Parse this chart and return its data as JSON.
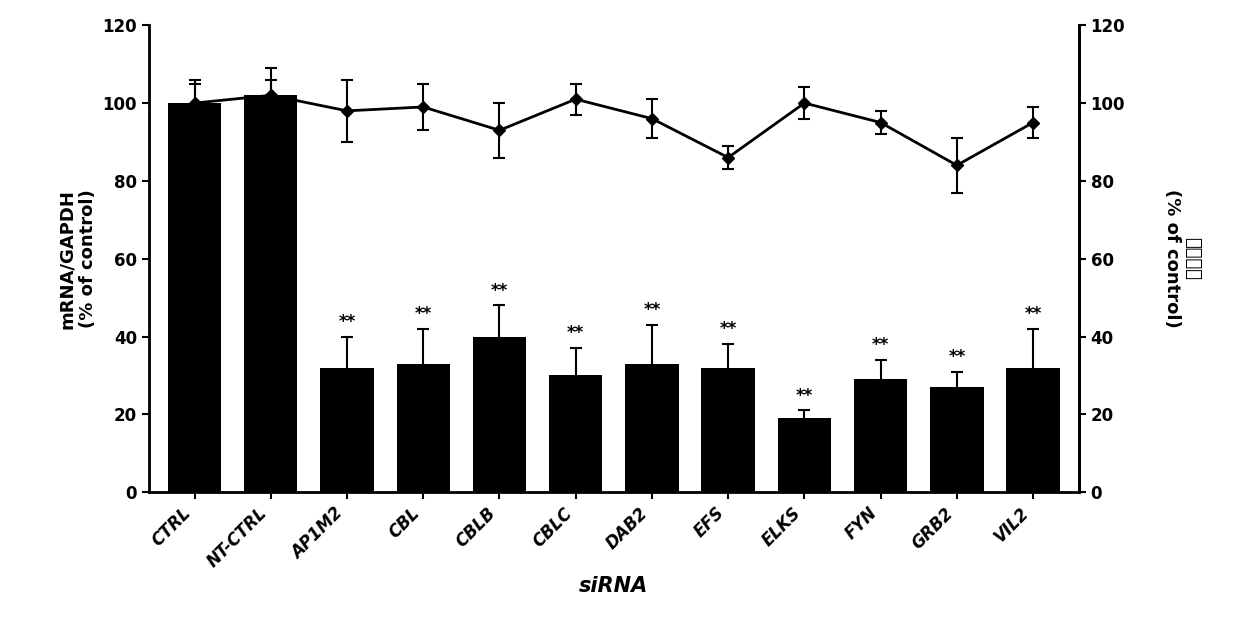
{
  "categories": [
    "CTRL",
    "NT-CTRL",
    "AP1M2",
    "CBL",
    "CBLB",
    "CBLC",
    "DAB2",
    "EFS",
    "ELKS",
    "FYN",
    "GRB2",
    "VIL2"
  ],
  "bar_values": [
    100,
    102,
    32,
    33,
    40,
    30,
    33,
    32,
    19,
    29,
    27,
    32
  ],
  "bar_errors": [
    6,
    7,
    8,
    9,
    8,
    7,
    10,
    6,
    2,
    5,
    4,
    10
  ],
  "line_values": [
    100,
    102,
    98,
    99,
    93,
    101,
    96,
    86,
    100,
    95,
    84,
    95
  ],
  "line_errors": [
    5,
    4,
    8,
    6,
    7,
    4,
    5,
    3,
    4,
    3,
    7,
    4
  ],
  "bar_color": "#000000",
  "line_color": "#000000",
  "ylabel_left_line1": "mRNA/GAPDH",
  "ylabel_left_line2": "(% of control)",
  "ylabel_right_line1": "细胞活力",
  "ylabel_right_line2": "(% of control)",
  "xlabel": "siRNA",
  "ylim": [
    0,
    120
  ],
  "yticks": [
    0,
    20,
    40,
    60,
    80,
    100,
    120
  ],
  "significance": [
    "",
    "",
    "**",
    "**",
    "**",
    "**",
    "**",
    "**",
    "**",
    "**",
    "**",
    "**"
  ],
  "sig_fontsize": 12,
  "tick_fontsize": 12,
  "label_fontsize": 13,
  "bar_width": 0.7
}
